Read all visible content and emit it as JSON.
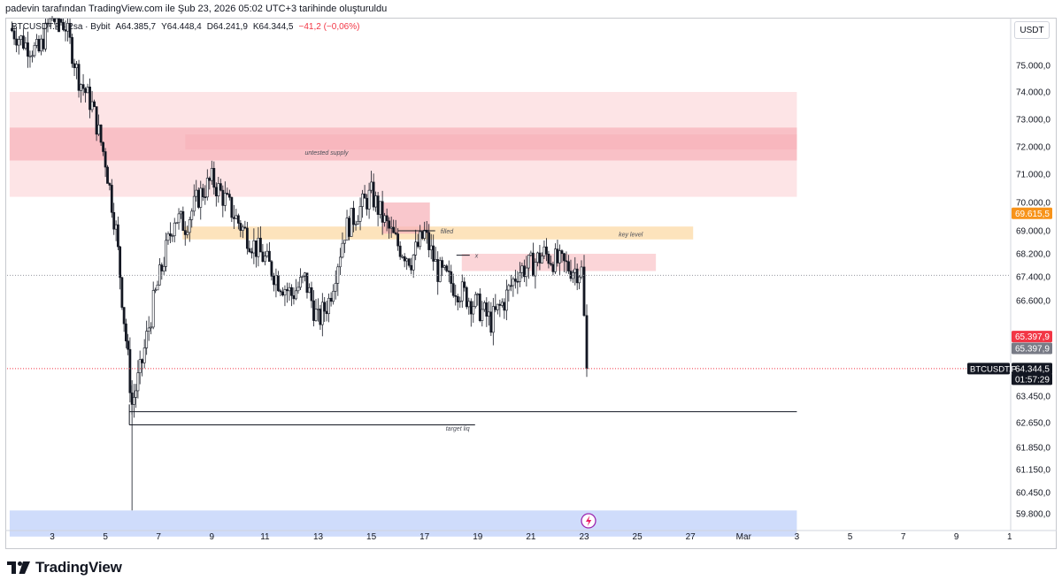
{
  "header_text": "padevin tarafından TradingView.com ile Şub 23, 2026 05:02 UTC+3 tarihinde oluşturuldu",
  "legend": {
    "symbol": "BTCUSDT.P · 2sa · Bybit",
    "open": "A64.385,7",
    "high": "Y64.448,4",
    "low": "D64.241,9",
    "close": "K64.344,5",
    "change": "−41,2 (−0,06%)"
  },
  "currency_button": "USDT",
  "brand": "TradingView",
  "colors": {
    "bull": "#ffffff",
    "bear": "#131722",
    "supply_light": "#fde4e6",
    "supply_dark": "#f7b4bb",
    "key_level": "#fde3bc",
    "bottom_zone": "#cfdcfb",
    "high_label": "#f7931a",
    "red_label": "#f23645",
    "gray_label": "#787b86",
    "price_label": "#131722"
  },
  "chart_data": {
    "type": "candlestick",
    "symbol": "BTCUSDT.P",
    "timeframe": "2sa",
    "x_ticks": [
      "3",
      "5",
      "7",
      "9",
      "11",
      "13",
      "15",
      "17",
      "19",
      "21",
      "23",
      "25",
      "27",
      "Mar",
      "3",
      "5",
      "7",
      "9",
      "1"
    ],
    "y_ticks": [
      "75.000,0",
      "74.000,0",
      "73.000,0",
      "72.000,0",
      "71.000,0",
      "70.000,0",
      "69.000,0",
      "68.200,0",
      "67.400,0",
      "66.600,0",
      "65.000,0",
      "63.450,0",
      "62.650,0",
      "61.850,0",
      "61.150,0",
      "60.450,0",
      "59.800,0"
    ],
    "y_tick_values": [
      75000,
      74000,
      73000,
      72000,
      71000,
      70000,
      69000,
      68200,
      67400,
      66600,
      65000,
      63450,
      62650,
      61850,
      61150,
      60450,
      59800
    ],
    "ylim": [
      59300,
      77000
    ],
    "price_labels": [
      {
        "text": "69.615,5",
        "value": 69615.5,
        "style": "orange"
      },
      {
        "text": "65.397,9",
        "value": 65397.9,
        "style": "red"
      },
      {
        "text": "65.397,9",
        "value": 65000,
        "style": "gray"
      },
      {
        "text": "64.344,5",
        "value": 64344.5,
        "style": "dark"
      },
      {
        "text": "01:57:29",
        "value": 64000,
        "style": "dark"
      }
    ],
    "symbol_tag": "BTCUSDT.P",
    "zones": [
      {
        "label": "untested supply",
        "from": 70200,
        "to": 74000,
        "color": "light",
        "start_day": 1.4,
        "end_day": 31
      },
      {
        "label": "",
        "from": 71500,
        "to": 72700,
        "color": "dark",
        "start_day": 1.4,
        "end_day": 31
      },
      {
        "label": "",
        "from": 71900,
        "to": 72450,
        "color": "dark",
        "start_day": 8.0,
        "end_day": 31
      },
      {
        "label": "key level",
        "from": 68700,
        "to": 69150,
        "color": "orange",
        "start_day": 7.9,
        "end_day": 27.1
      },
      {
        "label": "",
        "from": 68900,
        "to": 70000,
        "color": "dark",
        "start_day": 15.4,
        "end_day": 17.2
      },
      {
        "label": "",
        "from": 67600,
        "to": 68200,
        "color": "light2",
        "start_day": 18.4,
        "end_day": 25.7
      },
      {
        "label": "",
        "from": 59100,
        "to": 59900,
        "color": "blue",
        "start_day": 1.4,
        "end_day": 31
      }
    ],
    "annotations": [
      {
        "text": "untested supply",
        "day": 12.5,
        "value": 71800
      },
      {
        "text": "filled",
        "day": 17.6,
        "value": 69000
      },
      {
        "text": "key level",
        "day": 24.3,
        "value": 68900
      },
      {
        "text": "x",
        "day": 18.9,
        "value": 68150
      },
      {
        "text": "target liq",
        "day": 17.8,
        "value": 62480
      }
    ],
    "lines": [
      {
        "value": 62980,
        "from_day": 5.9,
        "to_day": 31,
        "label": ""
      },
      {
        "value": 62580,
        "from_day": 5.9,
        "to_day": 18.9,
        "label": "target liq"
      },
      {
        "value": 69000,
        "from_day": 16.0,
        "to_day": 17.4,
        "label": "filled"
      },
      {
        "value": 68150,
        "from_day": 18.2,
        "to_day": 18.7,
        "label": "x"
      }
    ],
    "last_price": 64344.5,
    "high_marker": 69615.5,
    "path": [
      [
        1.4,
        76400
      ],
      [
        2.0,
        75800
      ],
      [
        2.5,
        75500
      ],
      [
        3.0,
        77000
      ],
      [
        3.5,
        76500
      ],
      [
        4.0,
        74500
      ],
      [
        4.5,
        73500
      ],
      [
        5.0,
        71500
      ],
      [
        5.4,
        69000
      ],
      [
        5.7,
        66000
      ],
      [
        6.0,
        63200
      ],
      [
        6.3,
        64200
      ],
      [
        6.8,
        66500
      ],
      [
        7.2,
        68000
      ],
      [
        7.6,
        69500
      ],
      [
        8.0,
        69200
      ],
      [
        8.5,
        70200
      ],
      [
        9.0,
        70800
      ],
      [
        9.5,
        70100
      ],
      [
        10.0,
        69300
      ],
      [
        10.5,
        68600
      ],
      [
        11.0,
        68000
      ],
      [
        11.5,
        67300
      ],
      [
        12.0,
        66800
      ],
      [
        12.5,
        67300
      ],
      [
        13.0,
        65900
      ],
      [
        13.4,
        66600
      ],
      [
        14.0,
        69000
      ],
      [
        14.5,
        69700
      ],
      [
        15.0,
        70300
      ],
      [
        15.5,
        69300
      ],
      [
        16.0,
        68500
      ],
      [
        16.5,
        68000
      ],
      [
        17.0,
        68900
      ],
      [
        17.5,
        67600
      ],
      [
        18.0,
        67200
      ],
      [
        18.5,
        66800
      ],
      [
        19.0,
        66400
      ],
      [
        19.5,
        65900
      ],
      [
        20.0,
        66600
      ],
      [
        20.5,
        67600
      ],
      [
        21.0,
        67800
      ],
      [
        21.5,
        68200
      ],
      [
        22.0,
        67900
      ],
      [
        22.5,
        67700
      ],
      [
        22.9,
        67600
      ],
      [
        23.1,
        64344
      ]
    ]
  }
}
